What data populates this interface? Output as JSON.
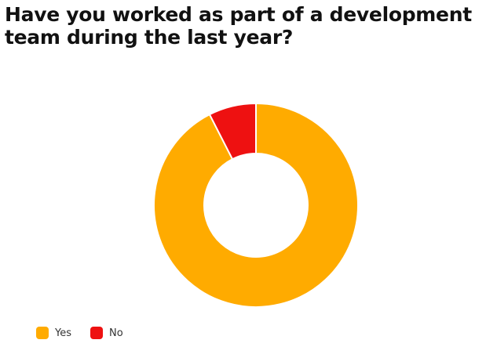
{
  "chart_data": {
    "type": "pie",
    "variant": "donut",
    "title": "Have you worked as part of a development team during the last year?",
    "categories": [
      "Yes",
      "No"
    ],
    "values": [
      92.5,
      7.5
    ],
    "colors": [
      "#FFAB00",
      "#EE1111"
    ],
    "legend": "bottom-left"
  }
}
